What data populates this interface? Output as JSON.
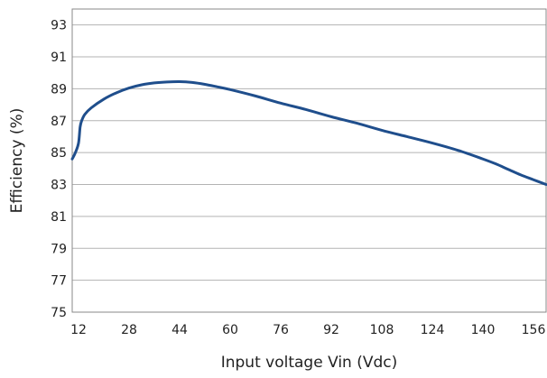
{
  "chart_data": {
    "type": "line",
    "title": "",
    "xlabel": "Input voltage Vin (Vdc)",
    "ylabel": "Efficiency (%)",
    "xlim": [
      10,
      160
    ],
    "ylim": [
      75,
      94
    ],
    "xticks": [
      12,
      28,
      44,
      60,
      76,
      92,
      108,
      124,
      140,
      156
    ],
    "yticks": [
      75,
      77,
      79,
      81,
      83,
      85,
      87,
      89,
      91,
      93
    ],
    "grid": "horizontal",
    "legend": "none",
    "line_color": "#1f4e8c",
    "series": [
      {
        "x": [
          10,
          11,
          12,
          12.5,
          13,
          14,
          16,
          20,
          24,
          28,
          32,
          36,
          40,
          44,
          48,
          52,
          56,
          60,
          68,
          76,
          84,
          92,
          100,
          108,
          116,
          124,
          132,
          140,
          144,
          148,
          152,
          156,
          160
        ],
        "y": [
          84.6,
          85.0,
          85.6,
          86.6,
          87.0,
          87.4,
          87.8,
          88.35,
          88.75,
          89.05,
          89.25,
          89.37,
          89.43,
          89.45,
          89.4,
          89.28,
          89.12,
          88.95,
          88.55,
          88.1,
          87.7,
          87.25,
          86.85,
          86.4,
          86.0,
          85.6,
          85.15,
          84.6,
          84.3,
          83.95,
          83.6,
          83.3,
          83.0
        ]
      }
    ]
  }
}
